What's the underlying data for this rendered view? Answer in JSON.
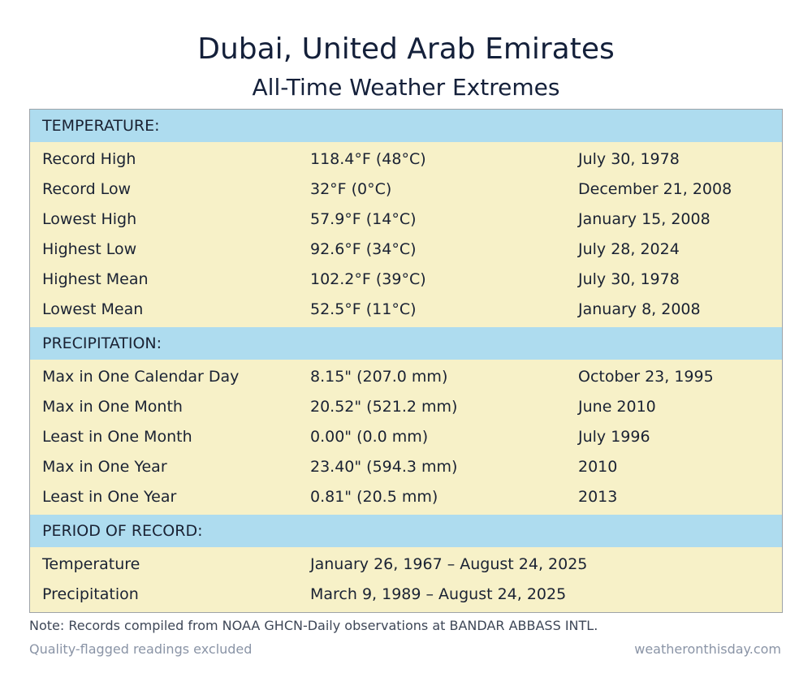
{
  "title": "Dubai, United Arab Emirates",
  "subtitle": "All-Time Weather Extremes",
  "sections": [
    {
      "header": "TEMPERATURE:",
      "rows": [
        {
          "label": "Record High",
          "value": "118.4°F (48°C)",
          "date": "July 30, 1978"
        },
        {
          "label": "Record Low",
          "value": "32°F (0°C)",
          "date": "December 21, 2008"
        },
        {
          "label": "Lowest High",
          "value": "57.9°F (14°C)",
          "date": "January 15, 2008"
        },
        {
          "label": "Highest Low",
          "value": "92.6°F (34°C)",
          "date": "July 28, 2024"
        },
        {
          "label": "Highest Mean",
          "value": "102.2°F (39°C)",
          "date": "July 30, 1978"
        },
        {
          "label": "Lowest Mean",
          "value": "52.5°F (11°C)",
          "date": "January 8, 2008"
        }
      ]
    },
    {
      "header": "PRECIPITATION:",
      "rows": [
        {
          "label": "Max in One Calendar Day",
          "value": "8.15\" (207.0 mm)",
          "date": "October 23, 1995"
        },
        {
          "label": "Max in One Month",
          "value": "20.52\" (521.2 mm)",
          "date": "June 2010"
        },
        {
          "label": "Least in One Month",
          "value": "0.00\" (0.0 mm)",
          "date": "July 1996"
        },
        {
          "label": "Max in One Year",
          "value": "23.40\" (594.3 mm)",
          "date": "2010"
        },
        {
          "label": "Least in One Year",
          "value": "0.81\" (20.5 mm)",
          "date": "2013"
        }
      ]
    },
    {
      "header": "PERIOD OF RECORD:",
      "rows": [
        {
          "label": "Temperature",
          "value": "January 26, 1967 – August 24, 2025",
          "date": ""
        },
        {
          "label": "Precipitation",
          "value": "March 9, 1989 – August 24, 2025",
          "date": ""
        }
      ]
    }
  ],
  "note": "Note: Records compiled from NOAA GHCN-Daily observations at BANDAR ABBASS INTL.",
  "footer": {
    "left": "Quality-flagged readings excluded",
    "right": "weatheronthisday.com"
  },
  "colors": {
    "section_header_bg": "#aedcef",
    "row_bg": "#f7f1c8",
    "border": "#9ea3a8"
  }
}
